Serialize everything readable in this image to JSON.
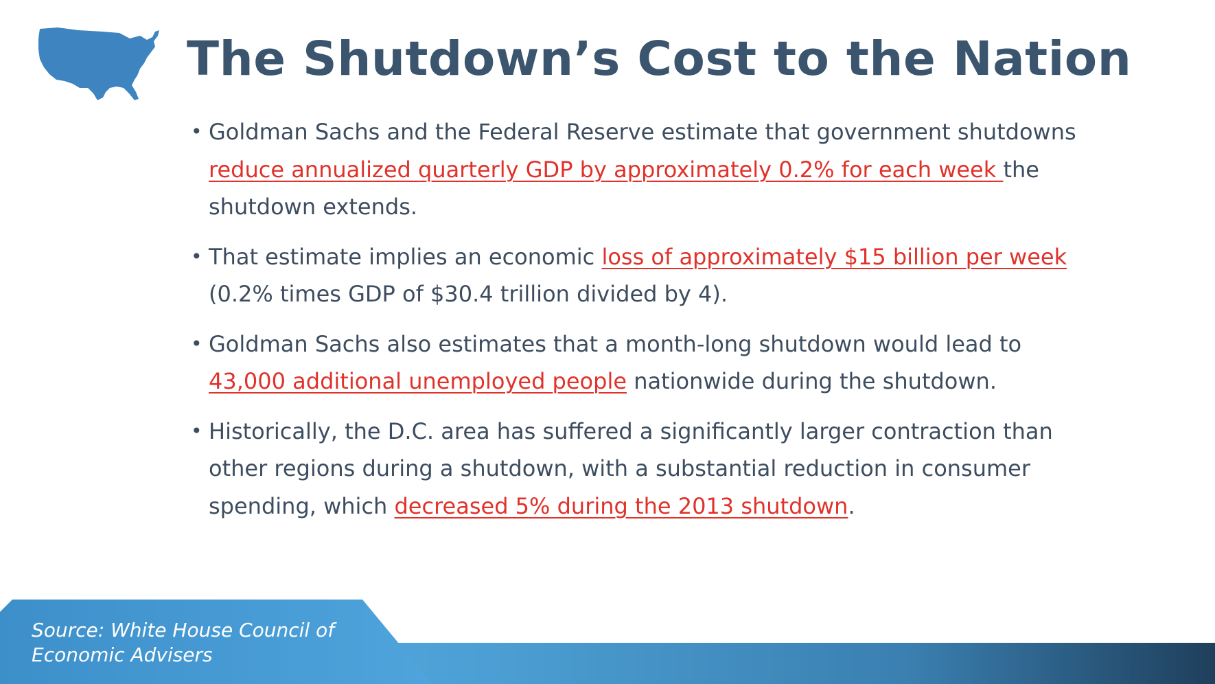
{
  "header": {
    "title": "The Shutdown’s Cost to the Nation",
    "map_color": "#3d84c0"
  },
  "bullets": [
    {
      "segments": [
        {
          "text": "Goldman Sachs and the Federal Reserve estimate that government shutdowns ",
          "highlight": false
        },
        {
          "text": "reduce annualized quarterly GDP by approximately 0.2% for each week ",
          "highlight": true
        },
        {
          "text": "the shutdown extends.",
          "highlight": false
        }
      ]
    },
    {
      "segments": [
        {
          "text": "That estimate implies an economic ",
          "highlight": false
        },
        {
          "text": "loss of approximately $15 billion per week ",
          "highlight": true
        },
        {
          "text": "(0.2% times GDP of $30.4 trillion divided by 4).",
          "highlight": false
        }
      ]
    },
    {
      "segments": [
        {
          "text": "Goldman Sachs also estimates that a month-long shutdown would lead to ",
          "highlight": false
        },
        {
          "text": "43,000 additional unemployed people",
          "highlight": true
        },
        {
          "text": " nationwide during the shutdown.",
          "highlight": false
        }
      ]
    },
    {
      "segments": [
        {
          "text": "Historically, the D.C. area has suffered a significantly larger contraction than other regions during a shutdown, with a substantial reduction in consumer spending, which ",
          "highlight": false
        },
        {
          "text": "decreased 5% during the 2013 shutdown",
          "highlight": true
        },
        {
          "text": ".",
          "highlight": false
        }
      ]
    }
  ],
  "footer": {
    "source": "Source: White House Council of Economic Advisers"
  },
  "colors": {
    "title": "#3c556e",
    "body_text": "#3d4d5f",
    "highlight": "#e0322a",
    "footer_accent": "#4c9fd4"
  }
}
